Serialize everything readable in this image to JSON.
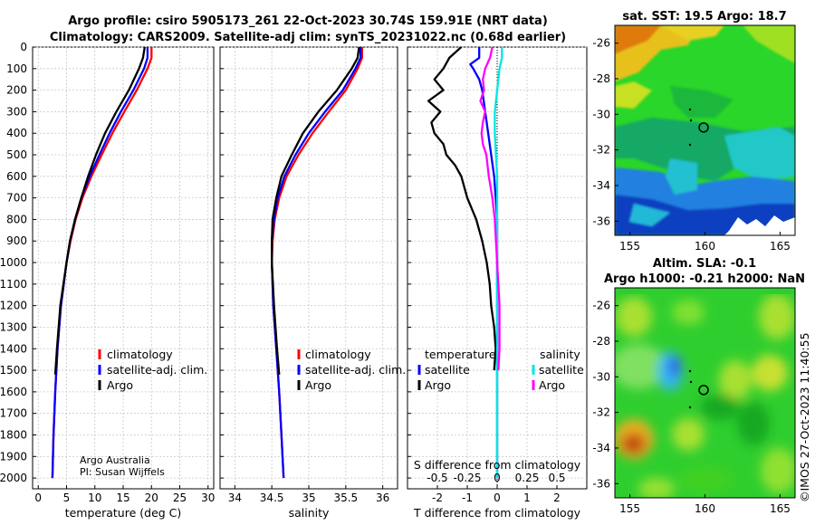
{
  "title": {
    "line1": "Argo profile: csiro 5905173_261 22-Oct-2023 30.74S 159.91E (NRT data)",
    "line2": "Climatology: CARS2009. Satellite-adj clim: synTS_20231022.nc (0.68d earlier)"
  },
  "credits": {
    "line1": "Argo Australia",
    "line2": "PI: Susan Wijffels"
  },
  "stamp": "©IMOS 27-Oct-2023 11:40:55",
  "colors": {
    "climatology": "#ff0000",
    "satellite_adj": "#0000ff",
    "argo": "#000000",
    "magenta": "#ff00ff",
    "cyan": "#00e5e5"
  },
  "chart_data": [
    {
      "id": "temperature",
      "type": "line",
      "xlabel": "temperature (deg C)",
      "ylabel": "",
      "xlim": [
        -1,
        31
      ],
      "ylim": [
        2050,
        0
      ],
      "xticks": [
        "0",
        "5",
        "10",
        "15",
        "20",
        "25",
        "30"
      ],
      "yticks": [
        "0",
        "100",
        "200",
        "300",
        "400",
        "500",
        "600",
        "700",
        "800",
        "900",
        "1000",
        "1100",
        "1200",
        "1300",
        "1400",
        "1500",
        "1600",
        "1700",
        "1800",
        "1900",
        "2000"
      ],
      "legend": [
        "climatology",
        "satellite-adj. clim.",
        "Argo"
      ],
      "series": [
        {
          "name": "climatology",
          "depth": [
            0,
            50,
            100,
            200,
            300,
            400,
            500,
            600,
            700,
            800,
            900,
            1000,
            1200,
            1400,
            1600,
            1800,
            2000
          ],
          "values": [
            20.0,
            20.0,
            19.3,
            17.4,
            15.2,
            13.1,
            11.2,
            9.4,
            7.8,
            6.6,
            5.7,
            5.0,
            4.0,
            3.4,
            3.0,
            2.7,
            2.5
          ]
        },
        {
          "name": "satellite-adj. clim.",
          "depth": [
            0,
            50,
            100,
            200,
            300,
            400,
            500,
            600,
            700,
            800,
            900,
            1000,
            1200,
            1400,
            1600,
            1800,
            2000
          ],
          "values": [
            19.3,
            19.3,
            18.7,
            16.8,
            14.6,
            12.6,
            10.8,
            9.1,
            7.6,
            6.5,
            5.6,
            5.0,
            4.0,
            3.4,
            3.0,
            2.7,
            2.5
          ]
        },
        {
          "name": "Argo",
          "depth": [
            0,
            50,
            100,
            200,
            300,
            400,
            500,
            600,
            700,
            800,
            900,
            1000,
            1200,
            1400,
            1520
          ],
          "values": [
            18.8,
            18.5,
            17.8,
            16.0,
            13.8,
            11.8,
            10.2,
            8.8,
            7.6,
            6.5,
            5.6,
            5.0,
            3.9,
            3.3,
            3.0
          ]
        }
      ]
    },
    {
      "id": "salinity",
      "type": "line",
      "xlabel": "salinity",
      "xlim": [
        33.8,
        36.2
      ],
      "ylim": [
        2050,
        0
      ],
      "xticks": [
        "34",
        "34.5",
        "35",
        "35.5",
        "36"
      ],
      "legend": [
        "climatology",
        "satellite-adj. clim.",
        "Argo"
      ],
      "series": [
        {
          "name": "climatology",
          "depth": [
            0,
            50,
            100,
            200,
            300,
            400,
            500,
            600,
            700,
            800,
            900,
            1000,
            1200,
            1400,
            1600,
            1800,
            2000
          ],
          "values": [
            35.72,
            35.72,
            35.66,
            35.5,
            35.27,
            35.05,
            34.86,
            34.7,
            34.6,
            34.54,
            34.51,
            34.5,
            34.52,
            34.56,
            34.6,
            34.63,
            34.66
          ]
        },
        {
          "name": "satellite-adj. clim.",
          "depth": [
            0,
            50,
            100,
            200,
            300,
            400,
            500,
            600,
            700,
            800,
            900,
            1000,
            1200,
            1400,
            1600,
            1800,
            2000
          ],
          "values": [
            35.7,
            35.7,
            35.63,
            35.46,
            35.22,
            35.0,
            34.82,
            34.67,
            34.58,
            34.53,
            34.5,
            34.5,
            34.52,
            34.56,
            34.6,
            34.63,
            34.66
          ]
        },
        {
          "name": "Argo",
          "depth": [
            0,
            50,
            100,
            200,
            300,
            400,
            500,
            600,
            700,
            800,
            900,
            1000,
            1200,
            1400,
            1520
          ],
          "values": [
            35.68,
            35.66,
            35.58,
            35.38,
            35.13,
            34.92,
            34.77,
            34.63,
            34.56,
            34.51,
            34.5,
            34.5,
            34.53,
            34.57,
            34.6
          ]
        }
      ]
    },
    {
      "id": "difference",
      "type": "line",
      "xlabel": "T difference from climatology",
      "xlabel_top": "S difference from climatology",
      "xlim": [
        -3,
        3
      ],
      "ylim": [
        2050,
        0
      ],
      "xticks": [
        "-2",
        "-1",
        "0",
        "1",
        "2"
      ],
      "xticks_top": [
        "-0.5",
        "-0.25",
        "0",
        "0.25",
        "0.5"
      ],
      "legend_temperature_title": "temperature",
      "legend_salinity_title": "salinity",
      "legend_temperature": [
        "satellite",
        "Argo"
      ],
      "legend_salinity": [
        "satellite",
        "Argo"
      ],
      "series": [
        {
          "name": "T satellite",
          "depth": [
            0,
            50,
            80,
            100,
            150,
            200,
            300,
            400,
            500,
            600,
            700,
            800,
            1000,
            1200,
            1400,
            1500,
            1600,
            2000
          ],
          "values": [
            -0.6,
            -0.6,
            -0.9,
            -0.8,
            -0.6,
            -0.5,
            -0.4,
            -0.3,
            -0.2,
            -0.1,
            -0.05,
            0,
            0,
            0,
            0,
            0,
            0,
            0
          ]
        },
        {
          "name": "T Argo",
          "depth": [
            0,
            50,
            100,
            150,
            200,
            250,
            300,
            350,
            400,
            450,
            500,
            550,
            600,
            700,
            800,
            900,
            1000,
            1100,
            1200,
            1300,
            1400,
            1500
          ],
          "values": [
            -1.2,
            -1.6,
            -1.8,
            -2.1,
            -1.8,
            -2.3,
            -1.9,
            -2.2,
            -2.1,
            -1.8,
            -1.7,
            -1.4,
            -1.2,
            -1.0,
            -0.7,
            -0.5,
            -0.35,
            -0.25,
            -0.2,
            -0.1,
            -0.05,
            -0.1
          ]
        },
        {
          "name": "S satellite",
          "depth": [
            0,
            50,
            100,
            200,
            300,
            400,
            500,
            600,
            800,
            1000,
            1200,
            1400,
            1600,
            2000
          ],
          "values": [
            0.04,
            0.04,
            0.02,
            0.0,
            -0.02,
            -0.02,
            -0.01,
            0,
            0,
            0,
            0,
            0,
            0,
            0
          ]
        },
        {
          "name": "S Argo",
          "depth": [
            0,
            50,
            100,
            150,
            200,
            250,
            300,
            350,
            400,
            450,
            500,
            550,
            600,
            700,
            800,
            900,
            1000,
            1200,
            1400,
            1500
          ],
          "values": [
            -0.04,
            -0.06,
            -0.1,
            -0.12,
            -0.11,
            -0.14,
            -0.1,
            -0.12,
            -0.13,
            -0.12,
            -0.09,
            -0.08,
            -0.07,
            -0.04,
            -0.02,
            -0.01,
            0.0,
            0.02,
            0.02,
            0.01
          ]
        }
      ]
    },
    {
      "id": "sst-map",
      "type": "heatmap",
      "title": "sat. SST: 19.5 Argo: 18.7",
      "xticks": [
        "155",
        "160",
        "165"
      ],
      "yticks": [
        "-26",
        "-28",
        "-30",
        "-32",
        "-34",
        "-36"
      ],
      "xlim": [
        154,
        166
      ],
      "ylim": [
        -36.8,
        -25
      ],
      "argo_position": [
        159.91,
        -30.74
      ]
    },
    {
      "id": "sla-map",
      "type": "heatmap",
      "title_line1": "Altim. SLA: -0.1",
      "title_line2": "Argo h1000: -0.21 h2000: NaN",
      "xticks": [
        "155",
        "160",
        "165"
      ],
      "yticks": [
        "-26",
        "-28",
        "-30",
        "-32",
        "-34",
        "-36"
      ],
      "xlim": [
        154,
        166
      ],
      "ylim": [
        -36.8,
        -25
      ],
      "argo_position": [
        159.91,
        -30.74
      ]
    }
  ]
}
